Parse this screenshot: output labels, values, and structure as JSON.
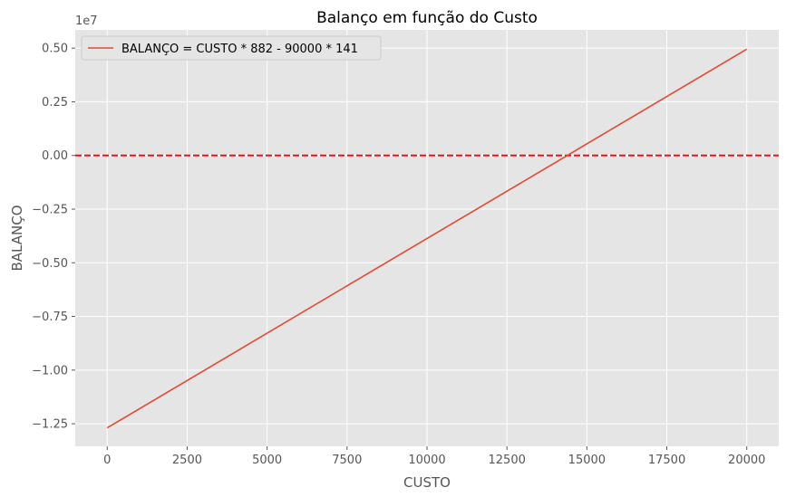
{
  "chart_data": {
    "type": "line",
    "title": "Balanço em função do Custo",
    "xlabel": "CUSTO",
    "ylabel": "BALANÇO",
    "y_offset_label": "1e7",
    "xlim": [
      -1000,
      21000
    ],
    "ylim": [
      -13550000,
      5850000
    ],
    "x_ticks": [
      0,
      2500,
      5000,
      7500,
      10000,
      12500,
      15000,
      17500,
      20000
    ],
    "x_tick_labels": [
      "0",
      "2500",
      "5000",
      "7500",
      "10000",
      "12500",
      "15000",
      "17500",
      "20000"
    ],
    "y_ticks": [
      5000000,
      2500000,
      0,
      -2500000,
      -5000000,
      -7500000,
      -10000000,
      -12500000
    ],
    "y_tick_labels": [
      "0.50",
      "0.25",
      "0.00",
      "−0.25",
      "−0.50",
      "−0.75",
      "−1.00",
      "−1.25"
    ],
    "series": [
      {
        "name": "BALANÇO = CUSTO * 882 - 90000 * 141",
        "color": "#E24A33",
        "x": [
          0,
          20000
        ],
        "y": [
          -12690000,
          4950000
        ]
      }
    ],
    "reference_lines": [
      {
        "axis": "y",
        "value": 0,
        "color": "#ff0000",
        "style": "dashed"
      }
    ],
    "grid": true,
    "legend_position": "upper-left",
    "background_color": "#E5E5E5",
    "grid_color": "#ffffff",
    "text_color": "#555555"
  }
}
